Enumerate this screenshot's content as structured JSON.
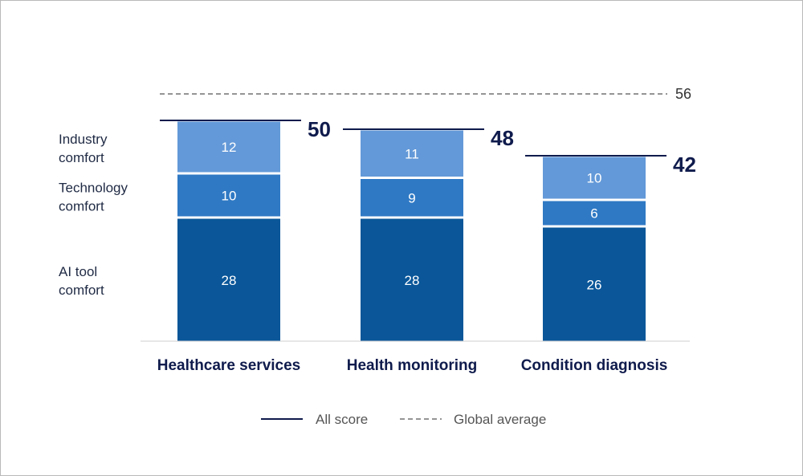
{
  "chart_data": {
    "type": "bar",
    "stacked": true,
    "categories": [
      "Healthcare services",
      "Health monitoring",
      "Condition diagnosis"
    ],
    "series": [
      {
        "name": "AI tool comfort",
        "values": [
          28,
          28,
          26
        ],
        "color": "#0a5699"
      },
      {
        "name": "Technology comfort",
        "values": [
          10,
          9,
          6
        ],
        "color": "#2f79c4"
      },
      {
        "name": "Industry comfort",
        "values": [
          12,
          11,
          10
        ],
        "color": "#6399d8"
      }
    ],
    "series_labels": [
      {
        "line1": "AI tool",
        "line2": "comfort"
      },
      {
        "line1": "Technology",
        "line2": "comfort"
      },
      {
        "line1": "Industry",
        "line2": "comfort"
      }
    ],
    "totals": [
      50,
      48,
      42
    ],
    "global_average": 56,
    "ylim": [
      0,
      56
    ],
    "legend": {
      "placement": "bottom",
      "items": [
        {
          "label": "All score",
          "style": "solid",
          "color": "#0f1b4c"
        },
        {
          "label": "Global average",
          "style": "dashed",
          "color": "#555555"
        }
      ]
    },
    "colors": {
      "total_line": "#0f1b4c",
      "average_line": "#555555",
      "axis": "#cfcfcf"
    }
  }
}
